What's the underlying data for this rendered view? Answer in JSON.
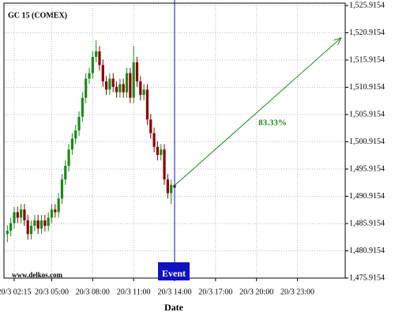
{
  "chart_data": {
    "type": "candlestick",
    "title": "GC 15 (COMEX)",
    "watermark": "www.delkos.com",
    "xlabel": "Date",
    "x": [
      1.75,
      2.0,
      2.25,
      2.5,
      2.75,
      3.0,
      3.25,
      3.5,
      3.75,
      4.0,
      4.25,
      4.5,
      4.75,
      5.0,
      5.25,
      5.5,
      5.75,
      6.0,
      6.25,
      6.5,
      6.75,
      7.0,
      7.25,
      7.5,
      7.75,
      8.0,
      8.25,
      8.5,
      8.75,
      9.0,
      9.25,
      9.5,
      9.75,
      10.0,
      10.25,
      10.5,
      10.75,
      11.0,
      11.25,
      11.5,
      11.75,
      12.0,
      12.25,
      12.5,
      12.75,
      13.0,
      13.25,
      13.5,
      13.75,
      14.0
    ],
    "open": [
      1484.0,
      1484.6,
      1486.0,
      1488.0,
      1487.0,
      1488.5,
      1486.5,
      1484.0,
      1485.5,
      1486.5,
      1485.0,
      1486.5,
      1485.5,
      1487.0,
      1488.5,
      1488.0,
      1490.5,
      1494.0,
      1496.5,
      1499.5,
      1501.5,
      1503.0,
      1505.5,
      1509.0,
      1512.5,
      1513.5,
      1516.5,
      1517.5,
      1515.0,
      1512.0,
      1510.5,
      1512.5,
      1511.0,
      1510.0,
      1511.5,
      1510.0,
      1513.5,
      1509.0,
      1515.5,
      1512.0,
      1509.5,
      1510.5,
      1505.0,
      1502.5,
      1500.0,
      1498.5,
      1499.5,
      1494.0,
      1491.5,
      1493.0
    ],
    "high": [
      1485.6,
      1487.0,
      1489.0,
      1489.0,
      1489.5,
      1489.5,
      1487.5,
      1486.5,
      1487.5,
      1487.5,
      1487.5,
      1487.5,
      1488.0,
      1489.5,
      1489.5,
      1491.5,
      1495.0,
      1497.5,
      1500.5,
      1502.5,
      1504.0,
      1506.5,
      1510.0,
      1513.5,
      1514.5,
      1517.5,
      1519.5,
      1518.5,
      1516.0,
      1513.0,
      1513.5,
      1513.5,
      1512.0,
      1512.5,
      1512.5,
      1514.5,
      1514.5,
      1518.5,
      1516.5,
      1513.0,
      1511.5,
      1511.5,
      1506.0,
      1503.5,
      1501.0,
      1500.5,
      1500.5,
      1495.0,
      1494.0,
      1494.0
    ],
    "low": [
      1482.5,
      1483.6,
      1485.0,
      1486.0,
      1486.0,
      1485.5,
      1483.0,
      1483.0,
      1484.5,
      1484.0,
      1484.0,
      1484.5,
      1484.5,
      1486.0,
      1487.0,
      1487.0,
      1489.5,
      1493.0,
      1495.5,
      1498.5,
      1500.5,
      1502.0,
      1504.5,
      1508.0,
      1511.5,
      1512.5,
      1515.5,
      1514.0,
      1511.0,
      1509.5,
      1509.5,
      1510.0,
      1509.0,
      1509.0,
      1509.0,
      1509.0,
      1508.0,
      1508.0,
      1511.0,
      1508.5,
      1508.5,
      1504.0,
      1501.5,
      1499.0,
      1497.5,
      1497.5,
      1493.0,
      1490.5,
      1489.5,
      1488.5
    ],
    "close": [
      1484.6,
      1486.0,
      1488.0,
      1487.0,
      1488.5,
      1486.5,
      1484.0,
      1485.5,
      1486.5,
      1485.0,
      1486.5,
      1485.5,
      1487.0,
      1488.5,
      1488.0,
      1490.5,
      1494.0,
      1496.5,
      1499.5,
      1501.5,
      1503.0,
      1505.5,
      1509.0,
      1512.5,
      1513.5,
      1516.5,
      1517.5,
      1515.0,
      1512.0,
      1510.5,
      1512.5,
      1511.0,
      1510.0,
      1511.5,
      1510.0,
      1513.5,
      1509.0,
      1515.5,
      1512.0,
      1509.5,
      1510.5,
      1505.0,
      1502.5,
      1500.0,
      1498.5,
      1499.5,
      1494.0,
      1491.5,
      1493.0,
      1492.5
    ],
    "up_color": "#1a8a1a",
    "down_color": "#8b0000",
    "xlim": [
      1.5,
      26.5
    ],
    "xticks": [
      {
        "value": 2.25,
        "label": "20/3 02:15"
      },
      {
        "value": 5,
        "label": "20/3 05:00"
      },
      {
        "value": 8,
        "label": "20/3 08:00"
      },
      {
        "value": 11,
        "label": "20/3 11:00"
      },
      {
        "value": 14,
        "label": "20/3 14:00"
      },
      {
        "value": 17,
        "label": "20/3 17:00"
      },
      {
        "value": 20,
        "label": "20/3 20:00"
      },
      {
        "value": 23,
        "label": "20/3 23:00"
      }
    ],
    "ylim": [
      1475.9154,
      1525.9154
    ],
    "yticks": [
      {
        "value": 1475.9154,
        "label": "1,475.9154"
      },
      {
        "value": 1480.9154,
        "label": "1,480.9154"
      },
      {
        "value": 1485.9154,
        "label": "1,485.9154"
      },
      {
        "value": 1490.9154,
        "label": "1,490.9154"
      },
      {
        "value": 1495.9154,
        "label": "1,495.9154"
      },
      {
        "value": 1500.9154,
        "label": "1,500.9154"
      },
      {
        "value": 1505.9154,
        "label": "1,505.9154"
      },
      {
        "value": 1510.9154,
        "label": "1,510.9154"
      },
      {
        "value": 1515.9154,
        "label": "1,515.9154"
      },
      {
        "value": 1520.9154,
        "label": "1,520.9154"
      },
      {
        "value": 1525.9154,
        "label": "1,525.9154"
      }
    ],
    "grid": true,
    "event": {
      "label": "Event",
      "x": 14,
      "color": "#1010c0"
    },
    "projection": {
      "label": "83.33%",
      "x": [
        14,
        26.2
      ],
      "y": [
        1492.9,
        1520.0
      ],
      "color": "#1a8a1a"
    }
  }
}
